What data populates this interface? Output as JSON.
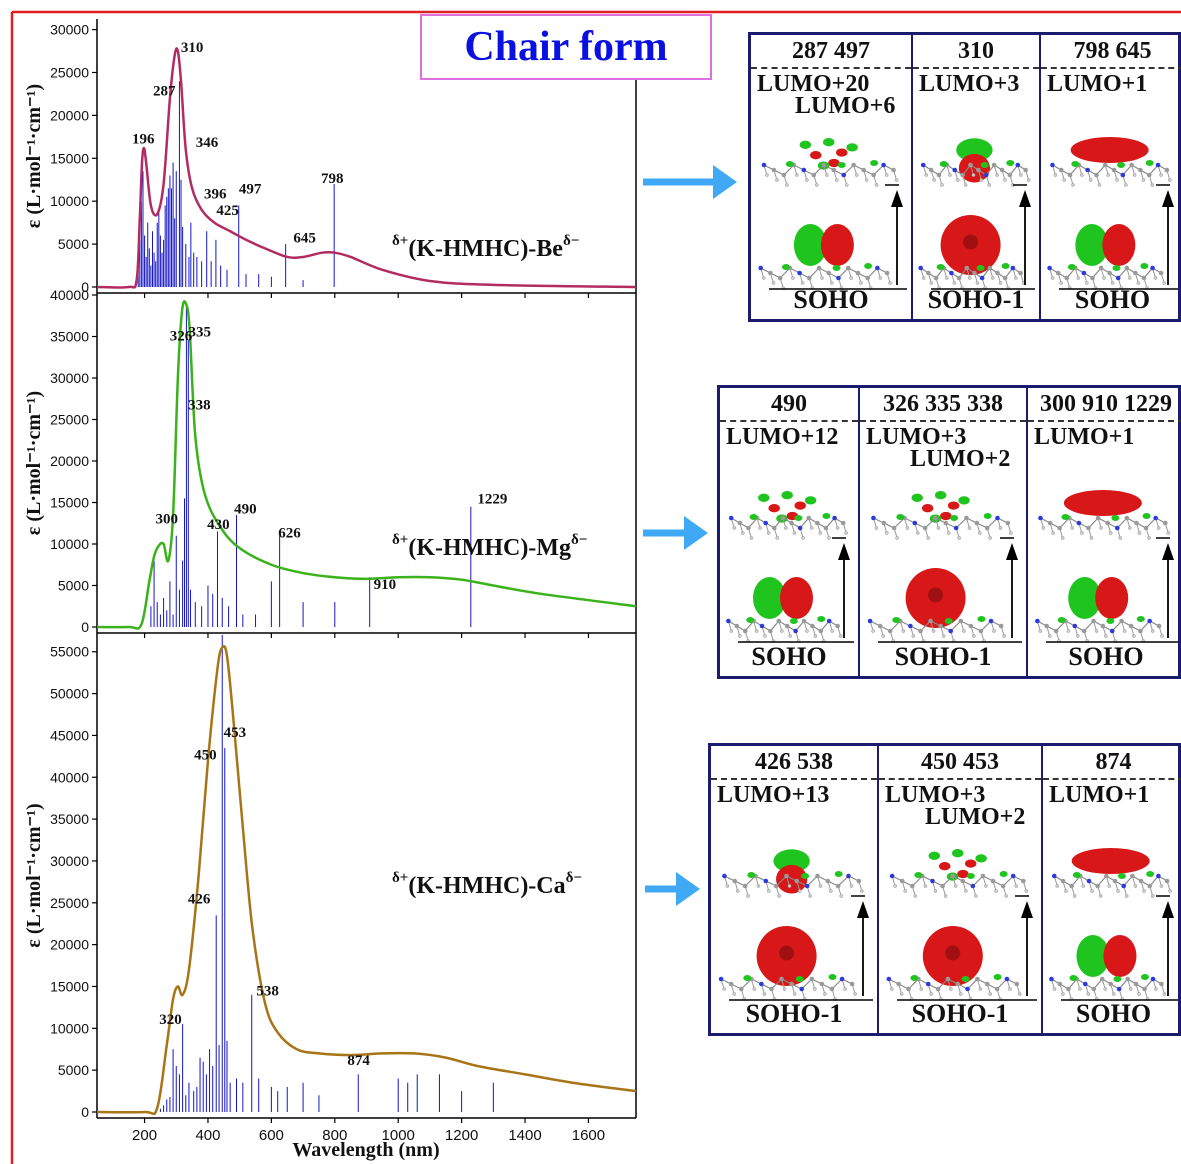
{
  "colors": {
    "frame": "#e02020",
    "title": "#0a10e0",
    "bars": "#1515c8",
    "panel_border": "#1c1c6e",
    "lobe_green": "#1fc41f",
    "lobe_red": "#d81818"
  },
  "title": "Chair form",
  "chart_data": [
    {
      "type": "line",
      "label": "δ+(K-HMHC)-Beδ−",
      "label_prefix": "δ+",
      "label_core": "(K-HMHC)-Be",
      "label_suffix": "δ−",
      "ylabel": "ε (L·mol⁻¹·cm⁻¹)",
      "ylim": [
        0,
        31000
      ],
      "yticks": [
        "0",
        "5000",
        "10000",
        "15000",
        "20000",
        "25000",
        "30000"
      ],
      "ytick_values": [
        0,
        5000,
        10000,
        15000,
        20000,
        25000,
        30000
      ],
      "color": "#b22c62",
      "curve": [
        [
          50,
          0
        ],
        [
          150,
          0
        ],
        [
          175,
          800
        ],
        [
          185,
          8000
        ],
        [
          192,
          14500
        ],
        [
          198,
          16200
        ],
        [
          205,
          14500
        ],
        [
          220,
          9500
        ],
        [
          240,
          8500
        ],
        [
          260,
          12000
        ],
        [
          280,
          22000
        ],
        [
          295,
          27000
        ],
        [
          305,
          27500
        ],
        [
          315,
          24000
        ],
        [
          330,
          16000
        ],
        [
          350,
          11500
        ],
        [
          380,
          9000
        ],
        [
          420,
          7500
        ],
        [
          470,
          6500
        ],
        [
          520,
          5500
        ],
        [
          580,
          4500
        ],
        [
          650,
          3500
        ],
        [
          700,
          3500
        ],
        [
          760,
          4000
        ],
        [
          800,
          4000
        ],
        [
          850,
          3500
        ],
        [
          950,
          2000
        ],
        [
          1100,
          700
        ],
        [
          1300,
          250
        ],
        [
          1750,
          0
        ]
      ],
      "sticks": [
        [
          180,
          2000
        ],
        [
          185,
          5500
        ],
        [
          190,
          10000
        ],
        [
          195,
          13500
        ],
        [
          200,
          6000
        ],
        [
          205,
          3500
        ],
        [
          210,
          7500
        ],
        [
          215,
          4500
        ],
        [
          220,
          2500
        ],
        [
          225,
          6500
        ],
        [
          230,
          4000
        ],
        [
          235,
          3000
        ],
        [
          240,
          7500
        ],
        [
          245,
          9000
        ],
        [
          250,
          6000
        ],
        [
          255,
          4000
        ],
        [
          260,
          5500
        ],
        [
          265,
          9500
        ],
        [
          270,
          10500
        ],
        [
          275,
          11500
        ],
        [
          280,
          13000
        ],
        [
          285,
          11500
        ],
        [
          290,
          14500
        ],
        [
          295,
          8000
        ],
        [
          300,
          13500
        ],
        [
          310,
          24000
        ],
        [
          315,
          12500
        ],
        [
          320,
          7000
        ],
        [
          330,
          5000
        ],
        [
          340,
          3500
        ],
        [
          346,
          7500
        ],
        [
          355,
          4000
        ],
        [
          365,
          3500
        ],
        [
          380,
          3000
        ],
        [
          396,
          6500
        ],
        [
          410,
          3000
        ],
        [
          425,
          5500
        ],
        [
          440,
          2500
        ],
        [
          460,
          2000
        ],
        [
          497,
          9500
        ],
        [
          520,
          1500
        ],
        [
          560,
          1500
        ],
        [
          600,
          1200
        ],
        [
          645,
          5000
        ],
        [
          700,
          800
        ],
        [
          798,
          12000
        ]
      ],
      "labels": [
        {
          "text": "196",
          "x": 196,
          "y": 16700
        },
        {
          "text": "287",
          "x": 262,
          "y": 22300
        },
        {
          "text": "310",
          "x": 350,
          "y": 27400
        },
        {
          "text": "346",
          "x": 397,
          "y": 16300
        },
        {
          "text": "396",
          "x": 423,
          "y": 10300
        },
        {
          "text": "425",
          "x": 462,
          "y": 8400
        },
        {
          "text": "497",
          "x": 533,
          "y": 10900
        },
        {
          "text": "645",
          "x": 705,
          "y": 5200
        },
        {
          "text": "798",
          "x": 792,
          "y": 12100
        }
      ]
    },
    {
      "type": "line",
      "label": "δ+(K-HMHC)-Mgδ−",
      "label_prefix": "δ+",
      "label_core": "(K-HMHC)-Mg",
      "label_suffix": "δ−",
      "ylabel": "ε (L·mol⁻¹·cm⁻¹)",
      "ylim": [
        0,
        40000
      ],
      "yticks": [
        "0",
        "5000",
        "10000",
        "15000",
        "20000",
        "25000",
        "30000",
        "35000",
        "40000"
      ],
      "ytick_values": [
        0,
        5000,
        10000,
        15000,
        20000,
        25000,
        30000,
        35000,
        40000
      ],
      "color": "#3ab21a",
      "curve": [
        [
          50,
          0
        ],
        [
          150,
          0
        ],
        [
          190,
          300
        ],
        [
          215,
          5500
        ],
        [
          230,
          8500
        ],
        [
          245,
          9800
        ],
        [
          260,
          10000
        ],
        [
          275,
          8000
        ],
        [
          290,
          13500
        ],
        [
          305,
          30000
        ],
        [
          318,
          38000
        ],
        [
          330,
          39000
        ],
        [
          342,
          36000
        ],
        [
          360,
          23000
        ],
        [
          390,
          16000
        ],
        [
          440,
          12000
        ],
        [
          500,
          9500
        ],
        [
          600,
          7500
        ],
        [
          700,
          6500
        ],
        [
          800,
          6000
        ],
        [
          900,
          5800
        ],
        [
          1000,
          6000
        ],
        [
          1100,
          6000
        ],
        [
          1200,
          5700
        ],
        [
          1300,
          5000
        ],
        [
          1450,
          4000
        ],
        [
          1750,
          2500
        ]
      ],
      "sticks": [
        [
          220,
          2500
        ],
        [
          230,
          8000
        ],
        [
          240,
          3000
        ],
        [
          250,
          1500
        ],
        [
          260,
          3500
        ],
        [
          270,
          2000
        ],
        [
          280,
          5500
        ],
        [
          290,
          1500
        ],
        [
          300,
          11000
        ],
        [
          310,
          4500
        ],
        [
          320,
          8000
        ],
        [
          326,
          15500
        ],
        [
          332,
          39000
        ],
        [
          338,
          34500
        ],
        [
          345,
          4500
        ],
        [
          360,
          3000
        ],
        [
          380,
          2500
        ],
        [
          400,
          5000
        ],
        [
          415,
          4000
        ],
        [
          430,
          11500
        ],
        [
          445,
          3500
        ],
        [
          465,
          2500
        ],
        [
          490,
          13500
        ],
        [
          510,
          1500
        ],
        [
          550,
          1500
        ],
        [
          600,
          5500
        ],
        [
          626,
          11000
        ],
        [
          700,
          3000
        ],
        [
          800,
          3000
        ],
        [
          910,
          6000
        ],
        [
          1229,
          14500
        ]
      ],
      "labels": [
        {
          "text": "300",
          "x": 270,
          "y": 12500
        },
        {
          "text": "326",
          "x": 315,
          "y": 34500
        },
        {
          "text": "335",
          "x": 374,
          "y": 35000
        },
        {
          "text": "338",
          "x": 373,
          "y": 26200
        },
        {
          "text": "430",
          "x": 433,
          "y": 11800
        },
        {
          "text": "490",
          "x": 518,
          "y": 13700
        },
        {
          "text": "626",
          "x": 657,
          "y": 10800
        },
        {
          "text": "910",
          "x": 958,
          "y": 4600
        },
        {
          "text": "1229",
          "x": 1297,
          "y": 14900
        }
      ]
    },
    {
      "type": "line",
      "label": "δ+(K-HMHC)-Caδ−",
      "label_prefix": "δ+",
      "label_core": "(K-HMHC)-Ca",
      "label_suffix": "δ−",
      "ylabel": "ε (L·mol⁻¹·cm⁻¹)",
      "ylim": [
        0,
        57000
      ],
      "yticks": [
        "0",
        "5000",
        "10000",
        "15000",
        "20000",
        "25000",
        "30000",
        "35000",
        "40000",
        "45000",
        "50000",
        "55000"
      ],
      "ytick_values": [
        0,
        5000,
        10000,
        15000,
        20000,
        25000,
        30000,
        35000,
        40000,
        45000,
        50000,
        55000
      ],
      "color": "#a87418",
      "curve": [
        [
          50,
          0
        ],
        [
          200,
          0
        ],
        [
          240,
          500
        ],
        [
          270,
          8000
        ],
        [
          290,
          13500
        ],
        [
          305,
          15000
        ],
        [
          320,
          14000
        ],
        [
          340,
          17000
        ],
        [
          370,
          28000
        ],
        [
          400,
          42000
        ],
        [
          430,
          53000
        ],
        [
          445,
          55500
        ],
        [
          460,
          54500
        ],
        [
          480,
          47000
        ],
        [
          510,
          34000
        ],
        [
          540,
          22000
        ],
        [
          580,
          13000
        ],
        [
          620,
          9500
        ],
        [
          680,
          7500
        ],
        [
          750,
          7000
        ],
        [
          850,
          6800
        ],
        [
          950,
          7000
        ],
        [
          1050,
          7000
        ],
        [
          1150,
          6500
        ],
        [
          1250,
          5500
        ],
        [
          1400,
          4500
        ],
        [
          1550,
          3500
        ],
        [
          1750,
          2500
        ]
      ],
      "sticks": [
        [
          250,
          400
        ],
        [
          260,
          800
        ],
        [
          270,
          1500
        ],
        [
          280,
          1800
        ],
        [
          290,
          7500
        ],
        [
          300,
          5500
        ],
        [
          310,
          4500
        ],
        [
          320,
          10500
        ],
        [
          330,
          2000
        ],
        [
          340,
          3500
        ],
        [
          355,
          2500
        ],
        [
          365,
          3000
        ],
        [
          375,
          6500
        ],
        [
          385,
          6000
        ],
        [
          395,
          4500
        ],
        [
          405,
          7500
        ],
        [
          415,
          5500
        ],
        [
          426,
          23500
        ],
        [
          435,
          8000
        ],
        [
          445,
          57000
        ],
        [
          453,
          43500
        ],
        [
          460,
          8500
        ],
        [
          470,
          3500
        ],
        [
          490,
          4000
        ],
        [
          510,
          3500
        ],
        [
          538,
          14000
        ],
        [
          560,
          4000
        ],
        [
          600,
          3000
        ],
        [
          620,
          2500
        ],
        [
          650,
          3000
        ],
        [
          700,
          3500
        ],
        [
          750,
          2000
        ],
        [
          874,
          4500
        ],
        [
          1000,
          4000
        ],
        [
          1030,
          3500
        ],
        [
          1060,
          4500
        ],
        [
          1130,
          4500
        ],
        [
          1200,
          2500
        ],
        [
          1300,
          3500
        ]
      ],
      "labels": [
        {
          "text": "320",
          "x": 282,
          "y": 10500
        },
        {
          "text": "426",
          "x": 372,
          "y": 24900
        },
        {
          "text": "450",
          "x": 392,
          "y": 42100
        },
        {
          "text": "453",
          "x": 485,
          "y": 44800
        },
        {
          "text": "538",
          "x": 588,
          "y": 13900
        },
        {
          "text": "874",
          "x": 875,
          "y": 5600
        }
      ]
    }
  ],
  "shared_x": {
    "xlabel": "Wavelength (nm)",
    "xlim": [
      50,
      1750
    ],
    "xticks": [
      "200",
      "400",
      "600",
      "800",
      "1000",
      "1200",
      "1400",
      "1600"
    ],
    "xtick_values": [
      200,
      400,
      600,
      800,
      1000,
      1200,
      1400,
      1600
    ]
  },
  "orbital_panels": [
    {
      "name": "be",
      "cells": [
        {
          "header": "287    497",
          "lumo": [
            "LUMO+20",
            "LUMO+6"
          ],
          "soho": "SOHO"
        },
        {
          "header": "310",
          "lumo": [
            "LUMO+3"
          ],
          "soho": "SOHO-1"
        },
        {
          "header": "798 645",
          "lumo": [
            "LUMO+1"
          ],
          "soho": "SOHO"
        }
      ]
    },
    {
      "name": "mg",
      "cells": [
        {
          "header": "490",
          "lumo": [
            "LUMO+12"
          ],
          "soho": "SOHO"
        },
        {
          "header": "326 335 338",
          "lumo": [
            "LUMO+3",
            "LUMO+2"
          ],
          "soho": "SOHO-1"
        },
        {
          "header": "300 910 1229",
          "lumo": [
            "LUMO+1"
          ],
          "soho": "SOHO"
        }
      ]
    },
    {
      "name": "ca",
      "cells": [
        {
          "header": "426   538",
          "lumo": [
            "LUMO+13"
          ],
          "soho": "SOHO-1"
        },
        {
          "header": "450 453",
          "lumo": [
            "LUMO+3",
            "LUMO+2"
          ],
          "soho": "SOHO-1"
        },
        {
          "header": "874",
          "lumo": [
            "LUMO+1"
          ],
          "soho": "SOHO"
        }
      ]
    }
  ]
}
